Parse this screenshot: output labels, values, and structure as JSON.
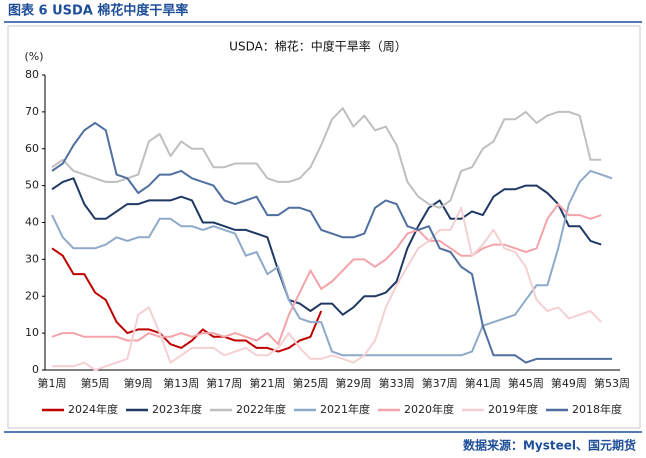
{
  "header": {
    "title": "图表 6 USDA 棉花中度干旱率"
  },
  "chart_data": {
    "type": "line",
    "title": "USDA：棉花：中度干旱率（周）",
    "y_unit": "(%)",
    "categories": [
      "第1周",
      null,
      null,
      null,
      "第5周",
      null,
      null,
      null,
      "第9周",
      null,
      null,
      null,
      "第13周",
      null,
      null,
      null,
      "第17周",
      null,
      null,
      null,
      "第21周",
      null,
      null,
      null,
      "第25周",
      null,
      null,
      null,
      "第29周",
      null,
      null,
      null,
      "第33周",
      null,
      null,
      null,
      "第37周",
      null,
      null,
      null,
      "第41周",
      null,
      null,
      null,
      "第45周",
      null,
      null,
      null,
      "第49周",
      null,
      null,
      null,
      "第53周"
    ],
    "ylim": [
      0,
      80
    ],
    "yticks": [
      0,
      10,
      20,
      30,
      40,
      50,
      60,
      70,
      80
    ],
    "series": [
      {
        "name": "2024年度",
        "color": "#c00000",
        "values": [
          33,
          31,
          26,
          26,
          21,
          19,
          13,
          10,
          11,
          11,
          10,
          7,
          6,
          8,
          11,
          9,
          9,
          8,
          8,
          6,
          6,
          5,
          6,
          8,
          9,
          16,
          null,
          null,
          null,
          null,
          null,
          null,
          null,
          null,
          null,
          null,
          null,
          null,
          null,
          null,
          null,
          null,
          null,
          null,
          null,
          null,
          null,
          null,
          null,
          null,
          null,
          null,
          null
        ]
      },
      {
        "name": "2023年度",
        "color": "#1f3864",
        "values": [
          49,
          51,
          52,
          45,
          41,
          41,
          43,
          45,
          45,
          46,
          46,
          46,
          47,
          46,
          40,
          40,
          39,
          38,
          38,
          37,
          36,
          27,
          19,
          18,
          16,
          18,
          18,
          15,
          17,
          20,
          20,
          21,
          24,
          33,
          39,
          44,
          46,
          41,
          41,
          43,
          42,
          47,
          49,
          49,
          50,
          50,
          48,
          45,
          39,
          39,
          35,
          34,
          null
        ]
      },
      {
        "name": "2022年度",
        "color": "#bfbfbf",
        "values": [
          55,
          57,
          54,
          53,
          52,
          51,
          51,
          52,
          53,
          62,
          64,
          58,
          62,
          60,
          60,
          55,
          55,
          56,
          56,
          56,
          52,
          51,
          51,
          52,
          55,
          61,
          68,
          71,
          66,
          69,
          65,
          66,
          61,
          51,
          47,
          45,
          44,
          46,
          54,
          55,
          60,
          62,
          68,
          68,
          70,
          67,
          69,
          70,
          70,
          69,
          57,
          57,
          null
        ]
      },
      {
        "name": "2021年度",
        "color": "#8ea9c9",
        "values": [
          42,
          36,
          33,
          33,
          33,
          34,
          36,
          35,
          36,
          36,
          41,
          41,
          39,
          39,
          38,
          39,
          38,
          37,
          31,
          32,
          26,
          28,
          19,
          14,
          13,
          13,
          5,
          4,
          4,
          4,
          4,
          4,
          4,
          4,
          4,
          4,
          4,
          4,
          4,
          5,
          12,
          13,
          14,
          15,
          19,
          23,
          23,
          33,
          45,
          51,
          54,
          53,
          52
        ]
      },
      {
        "name": "2020年度",
        "color": "#f4a3aa",
        "values": [
          9,
          10,
          10,
          9,
          9,
          9,
          9,
          8,
          8,
          10,
          9,
          9,
          10,
          9,
          10,
          10,
          9,
          10,
          9,
          8,
          10,
          7,
          15,
          21,
          27,
          22,
          24,
          27,
          30,
          30,
          28,
          30,
          33,
          37,
          38,
          35,
          35,
          33,
          31,
          31,
          33,
          34,
          34,
          33,
          32,
          33,
          41,
          45,
          42,
          42,
          41,
          42,
          null
        ]
      },
      {
        "name": "2019年度",
        "color": "#f4d0d4",
        "values": [
          1,
          1,
          1,
          2,
          0,
          1,
          2,
          3,
          15,
          17,
          10,
          2,
          4,
          6,
          6,
          6,
          4,
          5,
          6,
          4,
          4,
          6,
          10,
          6,
          3,
          3,
          4,
          3,
          2,
          4,
          8,
          17,
          23,
          28,
          33,
          35,
          38,
          38,
          44,
          31,
          34,
          38,
          33,
          32,
          28,
          19,
          16,
          17,
          14,
          15,
          16,
          13,
          null
        ]
      },
      {
        "name": "2018年度",
        "color": "#4e6fa0",
        "values": [
          54,
          56,
          61,
          65,
          67,
          65,
          53,
          52,
          48,
          50,
          53,
          53,
          54,
          52,
          51,
          50,
          46,
          45,
          46,
          47,
          42,
          42,
          44,
          44,
          43,
          38,
          37,
          36,
          36,
          37,
          44,
          46,
          45,
          39,
          38,
          39,
          33,
          32,
          28,
          26,
          12,
          4,
          4,
          4,
          2,
          3,
          3,
          3,
          3,
          3,
          3,
          3,
          3
        ]
      }
    ]
  },
  "source": "数据来源：Mysteel、国元期货"
}
